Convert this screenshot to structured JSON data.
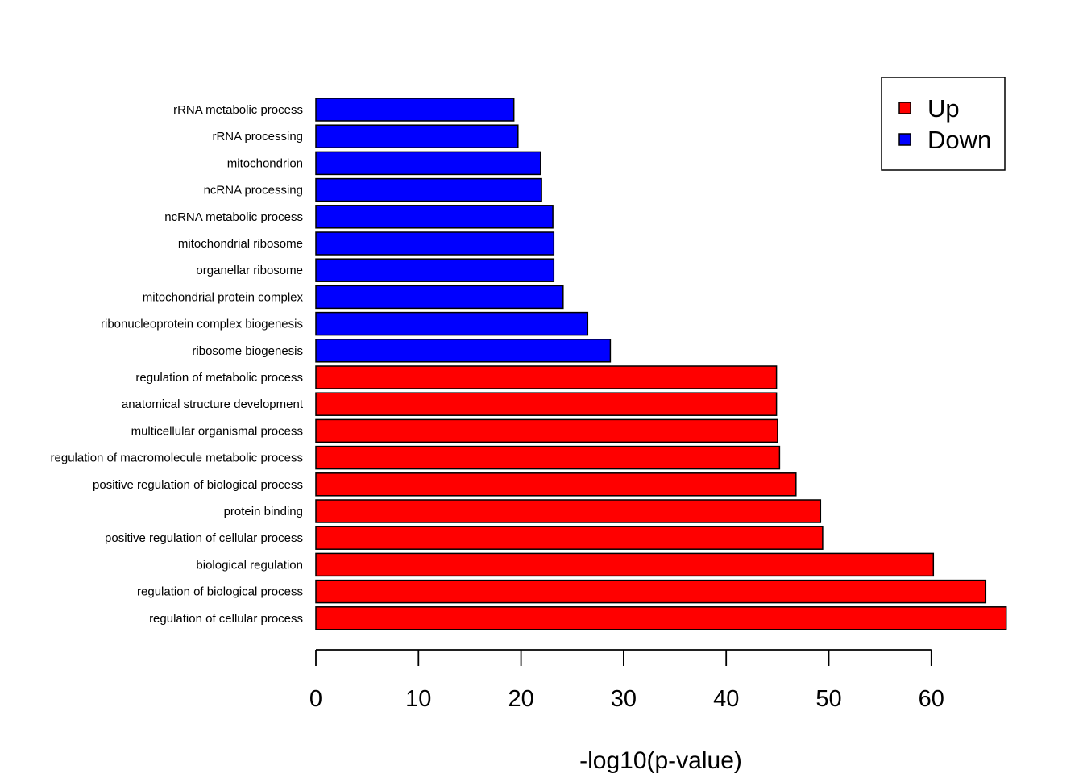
{
  "chart_data": {
    "type": "bar",
    "orientation": "horizontal",
    "xlabel": "-log10(p-value)",
    "ylabel": "",
    "xlim": [
      0,
      68
    ],
    "xticks": [
      0,
      10,
      20,
      30,
      40,
      50,
      60
    ],
    "grid": false,
    "legend_position": "top-right",
    "categories": [
      "rRNA metabolic process",
      "rRNA processing",
      "mitochondrion",
      "ncRNA processing",
      "ncRNA metabolic process",
      "mitochondrial ribosome",
      "organellar ribosome",
      "mitochondrial protein complex",
      "ribonucleoprotein complex biogenesis",
      "ribosome biogenesis",
      "regulation of metabolic process",
      "anatomical structure development",
      "multicellular organismal process",
      "regulation of macromolecule metabolic process",
      "positive regulation of biological process",
      "protein binding",
      "positive regulation of cellular process",
      "biological regulation",
      "regulation of biological process",
      "regulation of cellular process"
    ],
    "values": [
      19.3,
      19.7,
      21.9,
      22.0,
      23.1,
      23.2,
      23.2,
      24.1,
      26.5,
      28.7,
      44.9,
      44.9,
      45.0,
      45.2,
      46.8,
      49.2,
      49.4,
      60.2,
      65.3,
      67.3
    ],
    "groups": [
      "Down",
      "Down",
      "Down",
      "Down",
      "Down",
      "Down",
      "Down",
      "Down",
      "Down",
      "Down",
      "Up",
      "Up",
      "Up",
      "Up",
      "Up",
      "Up",
      "Up",
      "Up",
      "Up",
      "Up"
    ],
    "legend": [
      {
        "name": "Up",
        "color": "#ff0000"
      },
      {
        "name": "Down",
        "color": "#0000ff"
      }
    ]
  }
}
